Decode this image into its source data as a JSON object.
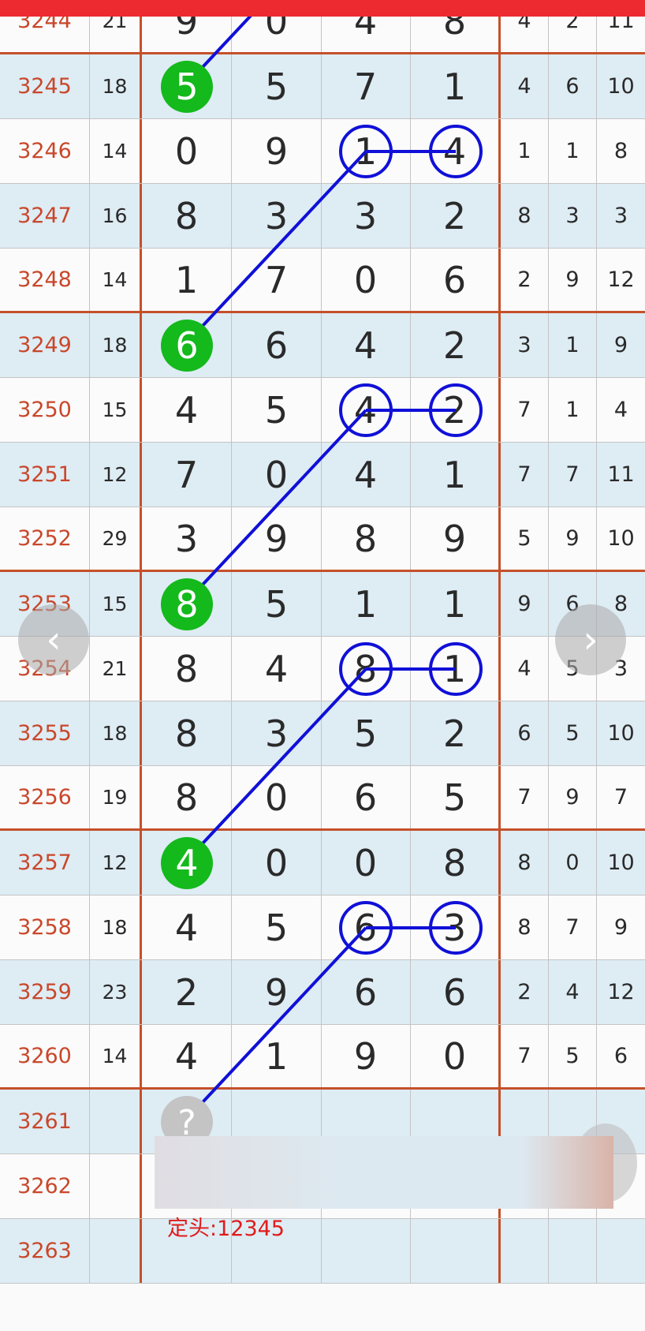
{
  "rows": [
    {
      "issue": "3244",
      "sum": "21",
      "d": [
        "9",
        "0",
        "4",
        "8"
      ],
      "s": [
        "4",
        "2",
        "11"
      ]
    },
    {
      "issue": "3245",
      "sum": "18",
      "d": [
        "5",
        "5",
        "7",
        "1"
      ],
      "s": [
        "4",
        "6",
        "10"
      ]
    },
    {
      "issue": "3246",
      "sum": "14",
      "d": [
        "0",
        "9",
        "1",
        "4"
      ],
      "s": [
        "1",
        "1",
        "8"
      ]
    },
    {
      "issue": "3247",
      "sum": "16",
      "d": [
        "8",
        "3",
        "3",
        "2"
      ],
      "s": [
        "8",
        "3",
        "3"
      ]
    },
    {
      "issue": "3248",
      "sum": "14",
      "d": [
        "1",
        "7",
        "0",
        "6"
      ],
      "s": [
        "2",
        "9",
        "12"
      ]
    },
    {
      "issue": "3249",
      "sum": "18",
      "d": [
        "6",
        "6",
        "4",
        "2"
      ],
      "s": [
        "3",
        "1",
        "9"
      ]
    },
    {
      "issue": "3250",
      "sum": "15",
      "d": [
        "4",
        "5",
        "4",
        "2"
      ],
      "s": [
        "7",
        "1",
        "4"
      ]
    },
    {
      "issue": "3251",
      "sum": "12",
      "d": [
        "7",
        "0",
        "4",
        "1"
      ],
      "s": [
        "7",
        "7",
        "11"
      ]
    },
    {
      "issue": "3252",
      "sum": "29",
      "d": [
        "3",
        "9",
        "8",
        "9"
      ],
      "s": [
        "5",
        "9",
        "10"
      ]
    },
    {
      "issue": "3253",
      "sum": "15",
      "d": [
        "8",
        "5",
        "1",
        "1"
      ],
      "s": [
        "9",
        "6",
        "8"
      ]
    },
    {
      "issue": "3254",
      "sum": "21",
      "d": [
        "8",
        "4",
        "8",
        "1"
      ],
      "s": [
        "4",
        "5",
        "3"
      ]
    },
    {
      "issue": "3255",
      "sum": "18",
      "d": [
        "8",
        "3",
        "5",
        "2"
      ],
      "s": [
        "6",
        "5",
        "10"
      ]
    },
    {
      "issue": "3256",
      "sum": "19",
      "d": [
        "8",
        "0",
        "6",
        "5"
      ],
      "s": [
        "7",
        "9",
        "7"
      ]
    },
    {
      "issue": "3257",
      "sum": "12",
      "d": [
        "4",
        "0",
        "0",
        "8"
      ],
      "s": [
        "8",
        "0",
        "10"
      ]
    },
    {
      "issue": "3258",
      "sum": "18",
      "d": [
        "4",
        "5",
        "6",
        "3"
      ],
      "s": [
        "8",
        "7",
        "9"
      ]
    },
    {
      "issue": "3259",
      "sum": "23",
      "d": [
        "2",
        "9",
        "6",
        "6"
      ],
      "s": [
        "2",
        "4",
        "12"
      ]
    },
    {
      "issue": "3260",
      "sum": "14",
      "d": [
        "4",
        "1",
        "9",
        "0"
      ],
      "s": [
        "7",
        "5",
        "6"
      ]
    },
    {
      "issue": "3261",
      "sum": "",
      "d": [
        "?",
        "",
        "",
        ""
      ],
      "s": [
        "",
        "",
        ""
      ]
    },
    {
      "issue": "3262",
      "sum": "",
      "d": [
        "",
        "",
        "",
        ""
      ],
      "s": [
        "",
        "",
        ""
      ]
    },
    {
      "issue": "3263",
      "sum": "",
      "d": [
        "",
        "",
        "",
        ""
      ],
      "s": [
        "",
        "",
        ""
      ]
    }
  ],
  "highlights": {
    "green_rows": [
      1,
      5,
      9,
      13
    ],
    "ring_rows": [
      2,
      6,
      10,
      14
    ],
    "unknown_row": 17
  },
  "colors": {
    "green": "#14b91c",
    "ring": "#1010d8",
    "line": "#1010d8",
    "header": "#ec2a2f",
    "grid_border": "#c5502a"
  },
  "note": "定头:12345",
  "nav": {
    "prev_icon": "chevron-left-icon",
    "next_icon": "chevron-right-icon",
    "prev": "‹",
    "next": "›"
  }
}
